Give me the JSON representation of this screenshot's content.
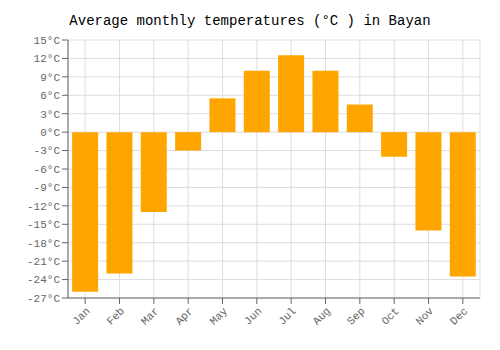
{
  "chart_data": {
    "type": "bar",
    "title": "Average monthly temperatures (°C ) in Bayan",
    "categories": [
      "Jan",
      "Feb",
      "Mar",
      "Apr",
      "May",
      "Jun",
      "Jul",
      "Aug",
      "Sep",
      "Oct",
      "Nov",
      "Dec"
    ],
    "values": [
      -26,
      -23,
      -13,
      -3,
      5.5,
      10,
      12.5,
      10,
      4.5,
      -4,
      -16,
      -23.5
    ],
    "color": "#FFA500",
    "ylim": [
      -27,
      15
    ],
    "yticks": [
      {
        "value": -27,
        "label": "-27°C"
      },
      {
        "value": -24,
        "label": "-24°C"
      },
      {
        "value": -21,
        "label": "-21°C"
      },
      {
        "value": -18,
        "label": "-18°C"
      },
      {
        "value": -15,
        "label": "-15°C"
      },
      {
        "value": -12,
        "label": "-12°C"
      },
      {
        "value": -9,
        "label": "-9°C"
      },
      {
        "value": -6,
        "label": "-6°C"
      },
      {
        "value": -3,
        "label": "-3°C"
      },
      {
        "value": 0,
        "label": "0°C"
      },
      {
        "value": 3,
        "label": "3°C"
      },
      {
        "value": 6,
        "label": "6°C"
      },
      {
        "value": 9,
        "label": "9°C"
      },
      {
        "value": 12,
        "label": "12°C"
      },
      {
        "value": 15,
        "label": "15°C"
      }
    ],
    "grid": true
  }
}
